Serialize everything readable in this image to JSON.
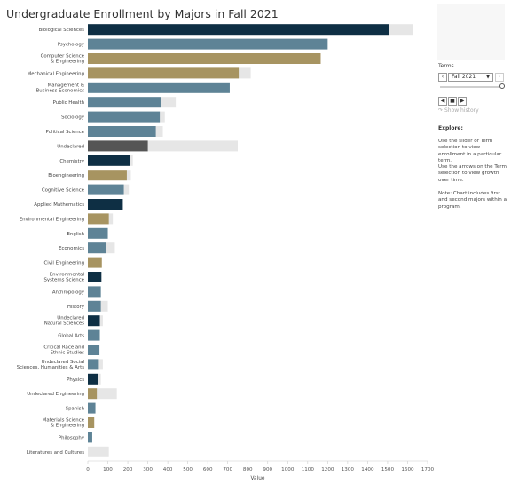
{
  "title": "Undergraduate Enrollment by Majors in Fall 2021",
  "controls": {
    "term_label": "Terms",
    "term_value": "Fall 2021",
    "show_history": "Show history"
  },
  "explore": {
    "heading": "Explore:",
    "text1": "Use the slider or Term selection to view enrollment in a particular term.",
    "text2": "Use the arrows on the Term selection to view growth over time.",
    "text3": "Note: Chart includes first and second majors within a program."
  },
  "colors": {
    "navy": "#0e2f44",
    "steel": "#5e8396",
    "gold": "#a79461",
    "gray": "#555555",
    "history": "#e6e6e6"
  },
  "chart_data": {
    "type": "bar",
    "orientation": "horizontal",
    "title": "Undergraduate Enrollment by Majors in Fall 2021",
    "xlabel": "Value",
    "ylabel": "",
    "xlim": [
      0,
      1700
    ],
    "xticks": [
      0,
      100,
      200,
      300,
      400,
      500,
      600,
      700,
      800,
      900,
      1000,
      1100,
      1200,
      1300,
      1400,
      1500,
      1600,
      1700
    ],
    "grid": false,
    "bars": [
      {
        "label": "Biological Sciences",
        "value": 1505,
        "history_max": 1625,
        "color": "navy"
      },
      {
        "label": "Psychology",
        "value": 1200,
        "history_max": 1200,
        "color": "steel"
      },
      {
        "label": "Computer Science & Engineering",
        "value": 1165,
        "history_max": 1165,
        "color": "gold"
      },
      {
        "label": "Mechanical Engineering",
        "value": 755,
        "history_max": 815,
        "color": "gold"
      },
      {
        "label": "Management & Business Economics",
        "value": 710,
        "history_max": 710,
        "color": "steel"
      },
      {
        "label": "Public Health",
        "value": 365,
        "history_max": 440,
        "color": "steel"
      },
      {
        "label": "Sociology",
        "value": 360,
        "history_max": 385,
        "color": "steel"
      },
      {
        "label": "Political Science",
        "value": 340,
        "history_max": 375,
        "color": "steel"
      },
      {
        "label": "Undeclared",
        "value": 300,
        "history_max": 750,
        "color": "gray"
      },
      {
        "label": "Chemistry",
        "value": 210,
        "history_max": 225,
        "color": "navy"
      },
      {
        "label": "Bioengineering",
        "value": 195,
        "history_max": 215,
        "color": "gold"
      },
      {
        "label": "Cognitive Science",
        "value": 180,
        "history_max": 205,
        "color": "steel"
      },
      {
        "label": "Applied Mathematics",
        "value": 175,
        "history_max": 175,
        "color": "navy"
      },
      {
        "label": "Environmental Engineering",
        "value": 105,
        "history_max": 125,
        "color": "gold"
      },
      {
        "label": "English",
        "value": 100,
        "history_max": 100,
        "color": "steel"
      },
      {
        "label": "Economics",
        "value": 90,
        "history_max": 135,
        "color": "steel"
      },
      {
        "label": "Civil Engineering",
        "value": 70,
        "history_max": 70,
        "color": "gold"
      },
      {
        "label": "Environmental Systems Science",
        "value": 68,
        "history_max": 68,
        "color": "navy"
      },
      {
        "label": "Anthropology",
        "value": 65,
        "history_max": 65,
        "color": "steel"
      },
      {
        "label": "History",
        "value": 65,
        "history_max": 100,
        "color": "steel"
      },
      {
        "label": "Undeclared Natural Sciences",
        "value": 60,
        "history_max": 75,
        "color": "navy"
      },
      {
        "label": "Global Arts",
        "value": 60,
        "history_max": 60,
        "color": "steel"
      },
      {
        "label": "Critical Race and Ethnic Studies",
        "value": 58,
        "history_max": 58,
        "color": "steel"
      },
      {
        "label": "Undeclared Social Sciences, Humanities & Arts",
        "value": 55,
        "history_max": 75,
        "color": "steel"
      },
      {
        "label": "Physics",
        "value": 50,
        "history_max": 65,
        "color": "navy"
      },
      {
        "label": "Undeclared Engineering",
        "value": 45,
        "history_max": 145,
        "color": "gold"
      },
      {
        "label": "Spanish",
        "value": 38,
        "history_max": 38,
        "color": "steel"
      },
      {
        "label": "Materials Science & Engineering",
        "value": 32,
        "history_max": 32,
        "color": "gold"
      },
      {
        "label": "Philosophy",
        "value": 22,
        "history_max": 22,
        "color": "steel"
      },
      {
        "label": "Literatures and Cultures",
        "value": 0,
        "history_max": 105,
        "color": "steel"
      }
    ]
  }
}
